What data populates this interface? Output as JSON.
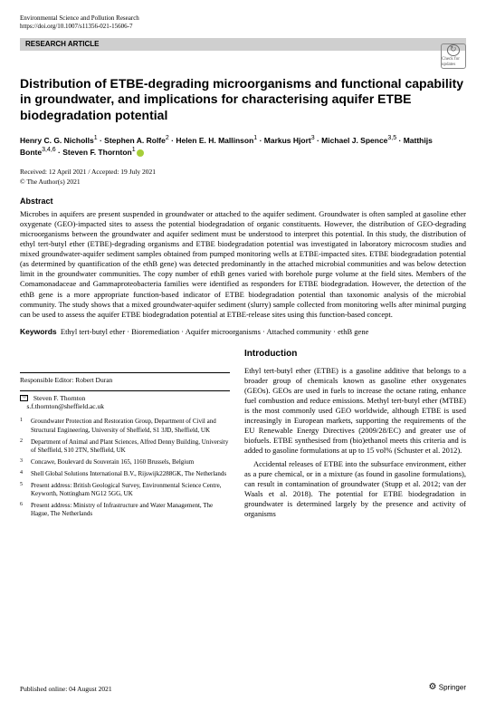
{
  "header": {
    "journal": "Environmental Science and Pollution Research",
    "doi": "https://doi.org/10.1007/s11356-021-15606-7",
    "article_type": "RESEARCH ARTICLE",
    "badge_text": "Check for updates"
  },
  "title": "Distribution of ETBE-degrading microorganisms and functional capability in groundwater, and implications for characterising aquifer ETBE biodegradation potential",
  "authors_html": "Henry C. G. Nicholls<sup>1</sup> · Stephen A. Rolfe<sup>2</sup> · Helen E. H. Mallinson<sup>1</sup> · Markus Hjort<sup>3</sup> · Michael J. Spence<sup>3,5</sup> · Matthijs Bonte<sup>3,4,6</sup> · Steven F. Thornton<sup>1</sup>",
  "dates": "Received: 12 April 2021 / Accepted: 19 July 2021",
  "copyright": "© The Author(s) 2021",
  "abstract": {
    "heading": "Abstract",
    "body": "Microbes in aquifers are present suspended in groundwater or attached to the aquifer sediment. Groundwater is often sampled at gasoline ether oxygenate (GEO)-impacted sites to assess the potential biodegradation of organic constituents. However, the distribution of GEO-degrading microorganisms between the groundwater and aquifer sediment must be understood to interpret this potential. In this study, the distribution of ethyl tert-butyl ether (ETBE)-degrading organisms and ETBE biodegradation potential was investigated in laboratory microcosm studies and mixed groundwater-aquifer sediment samples obtained from pumped monitoring wells at ETBE-impacted sites. ETBE biodegradation potential (as determined by quantification of the ethB gene) was detected predominantly in the attached microbial communities and was below detection limit in the groundwater communities. The copy number of ethB genes varied with borehole purge volume at the field sites. Members of the Comamonadaceae and Gammaproteobacteria families were identified as responders for ETBE biodegradation. However, the detection of the ethB gene is a more appropriate function-based indicator of ETBE biodegradation potential than taxonomic analysis of the microbial community. The study shows that a mixed groundwater-aquifer sediment (slurry) sample collected from monitoring wells after minimal purging can be used to assess the aquifer ETBE biodegradation potential at ETBE-release sites using this function-based concept."
  },
  "keywords": {
    "label": "Keywords",
    "text": "Ethyl tert-butyl ether · Bioremediation · Aquifer microorganisms · Attached community · ethB gene"
  },
  "introduction": {
    "heading": "Introduction",
    "p1": "Ethyl tert-butyl ether (ETBE) is a gasoline additive that belongs to a broader group of chemicals known as gasoline ether oxygenates (GEOs). GEOs are used in fuels to increase the octane rating, enhance fuel combustion and reduce emissions. Methyl tert-butyl ether (MTBE) is the most commonly used GEO worldwide, although ETBE is used increasingly in European markets, supporting the requirements of the EU Renewable Energy Directives (2009/28/EC) and greater use of biofuels. ETBE synthesised from (bio)ethanol meets this criteria and is added to gasoline formulations at up to 15 vol% (Schuster et al. 2012).",
    "p2": "Accidental releases of ETBE into the subsurface environment, either as a pure chemical, or in a mixture (as found in gasoline formulations), can result in contamination of groundwater (Stupp et al. 2012; van der Waals et al. 2018). The potential for ETBE biodegradation in groundwater is determined largely by the presence and activity of organisms"
  },
  "editor": {
    "label": "Responsible Editor:",
    "name": "Robert Duran"
  },
  "correspondence": {
    "name": "Steven F. Thornton",
    "email": "s.f.thornton@sheffield.ac.uk"
  },
  "affiliations": [
    {
      "n": "1",
      "text": "Groundwater Protection and Restoration Group, Department of Civil and Structural Engineering, University of Sheffield, S1 3JD, Sheffield, UK"
    },
    {
      "n": "2",
      "text": "Department of Animal and Plant Sciences, Alfred Denny Building, University of Sheffield, S10 2TN, Sheffield, UK"
    },
    {
      "n": "3",
      "text": "Concawe, Boulevard du Souverain 165, 1160 Brussels, Belgium"
    },
    {
      "n": "4",
      "text": "Shell Global Solutions International B.V., Rijswijk2288GK, The Netherlands"
    },
    {
      "n": "5",
      "text": "Present address: British Geological Survey, Environmental Science Centre, Keyworth, Nottingham NG12 5GG, UK"
    },
    {
      "n": "6",
      "text": "Present address: Ministry of Infrastructure and Water Management, The Hague, The Netherlands"
    }
  ],
  "footer": {
    "published": "Published online: 04 August 2021",
    "publisher": "Springer"
  }
}
